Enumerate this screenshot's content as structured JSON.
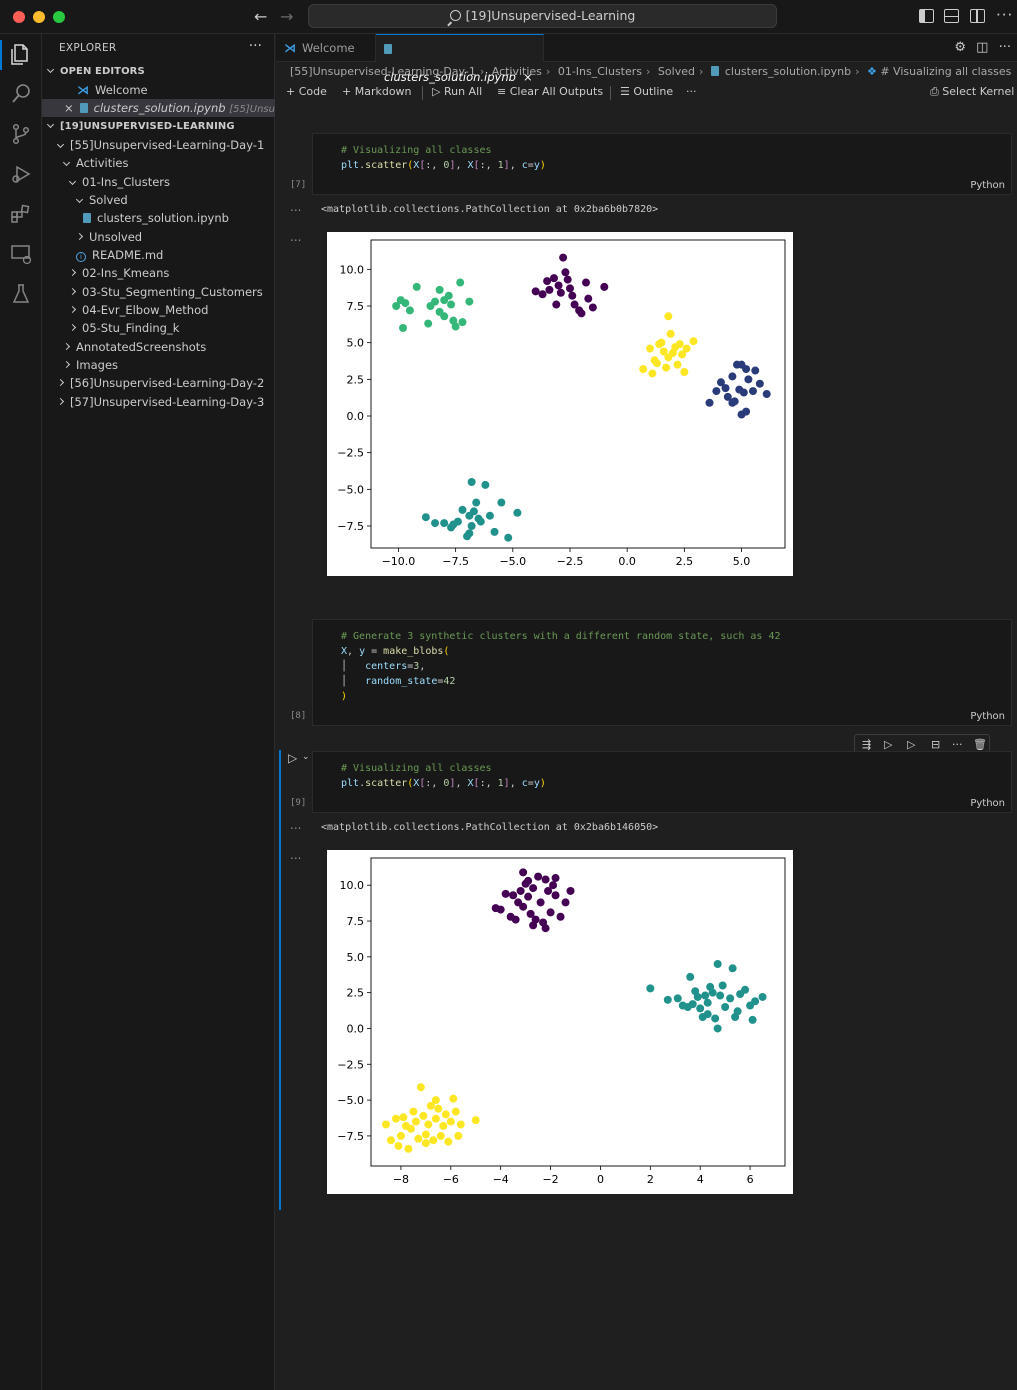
{
  "window": {
    "title": "[19]Unsupervised-Learning"
  },
  "sidebar": {
    "header": "EXPLORER",
    "open_editors_label": "OPEN EDITORS",
    "open_editors": [
      {
        "label": "Welcome"
      },
      {
        "label": "clusters_solution.ipynb",
        "detail": "[55]Unsup..."
      }
    ],
    "workspace_label": "[19]UNSUPERVISED-LEARNING",
    "tree": [
      "[55]Unsupervised-Learning-Day-1",
      "Activities",
      "01-Ins_Clusters",
      "Solved",
      "clusters_solution.ipynb",
      "Unsolved",
      "README.md",
      "02-Ins_Kmeans",
      "03-Stu_Segmenting_Customers",
      "04-Evr_Elbow_Method",
      "05-Stu_Finding_k",
      "AnnotatedScreenshots",
      "Images",
      "[56]Unsupervised-Learning-Day-2",
      "[57]Unsupervised-Learning-Day-3"
    ]
  },
  "tabs": [
    {
      "label": "Welcome"
    },
    {
      "label": "clusters_solution.ipynb"
    }
  ],
  "breadcrumb": [
    "[55]Unsupervised-Learning-Day-1",
    "Activities",
    "01-Ins_Clusters",
    "Solved",
    "clusters_solution.ipynb",
    "# Visualizing all classes"
  ],
  "toolbar": {
    "code": "Code",
    "markdown": "Markdown",
    "run_all": "Run All",
    "clear_outputs": "Clear All Outputs",
    "outline": "Outline",
    "kernel": "Select Kernel"
  },
  "cells": {
    "c7": {
      "exec": "[7]",
      "comment": "# Visualizing all classes",
      "lang": "Python",
      "output": "<matplotlib.collections.PathCollection at 0x2ba6b0b7820>"
    },
    "c8": {
      "exec": "[8]",
      "comment": "# Generate 3 synthetic clusters with a different random state, such as 42",
      "lang": "Python"
    },
    "c9": {
      "exec": "[9]",
      "comment": "# Visualizing all classes",
      "lang": "Python",
      "output": "<matplotlib.collections.PathCollection at 0x2ba6b146050>"
    },
    "output_dots": "..."
  },
  "colors": {
    "accent": "#0078d4",
    "viridis_purple": "#440154",
    "viridis_blue": "#31688e",
    "viridis_navy": "#2a3b7a",
    "viridis_teal": "#21918c",
    "viridis_green": "#35b779",
    "viridis_yellow": "#fde725"
  },
  "chart_data": [
    {
      "type": "scatter",
      "title": "",
      "xlabel": "",
      "ylabel": "",
      "xlim": [
        -11.2,
        6.9
      ],
      "ylim": [
        -9.0,
        12.0
      ],
      "xticks": [
        "−10.0",
        "−7.5",
        "−5.0",
        "−2.5",
        "0.0",
        "2.5",
        "5.0"
      ],
      "xtick_values": [
        -10,
        -7.5,
        -5,
        -2.5,
        0,
        2.5,
        5
      ],
      "yticks": [
        "10.0",
        "7.5",
        "5.0",
        "2.5",
        "0.0",
        "−2.5",
        "−5.0",
        "−7.5"
      ],
      "ytick_values": [
        10,
        7.5,
        5,
        2.5,
        0,
        -2.5,
        -5,
        -7.5
      ],
      "series": [
        {
          "color": "#35b779",
          "points": [
            [
              -10.1,
              7.5
            ],
            [
              -9.9,
              7.9
            ],
            [
              -9.7,
              7.7
            ],
            [
              -9.5,
              7.2
            ],
            [
              -9.2,
              8.8
            ],
            [
              -9.8,
              6.0
            ],
            [
              -8.7,
              6.3
            ],
            [
              -8.4,
              7.8
            ],
            [
              -8.2,
              8.6
            ],
            [
              -8.0,
              7.9
            ],
            [
              -7.8,
              8.2
            ],
            [
              -7.7,
              7.6
            ],
            [
              -8.0,
              6.8
            ],
            [
              -7.6,
              6.5
            ],
            [
              -7.5,
              6.1
            ],
            [
              -7.2,
              6.4
            ],
            [
              -6.9,
              7.8
            ],
            [
              -7.3,
              9.1
            ],
            [
              -8.2,
              7.1
            ],
            [
              -8.6,
              7.5
            ]
          ]
        },
        {
          "color": "#440154",
          "points": [
            [
              -4.0,
              8.5
            ],
            [
              -3.7,
              8.3
            ],
            [
              -3.5,
              9.2
            ],
            [
              -3.2,
              9.4
            ],
            [
              -3.0,
              8.9
            ],
            [
              -2.8,
              10.8
            ],
            [
              -2.6,
              9.3
            ],
            [
              -2.4,
              8.2
            ],
            [
              -2.3,
              7.6
            ],
            [
              -2.1,
              7.2
            ],
            [
              -2.0,
              7.0
            ],
            [
              -2.9,
              8.4
            ],
            [
              -3.1,
              7.6
            ],
            [
              -2.7,
              9.8
            ],
            [
              -1.7,
              8.0
            ],
            [
              -1.8,
              9.1
            ],
            [
              -1.0,
              8.8
            ],
            [
              -1.5,
              7.4
            ],
            [
              -2.5,
              8.7
            ],
            [
              -3.4,
              8.6
            ]
          ]
        },
        {
          "color": "#fde725",
          "points": [
            [
              0.7,
              3.2
            ],
            [
              1.0,
              4.6
            ],
            [
              1.1,
              2.9
            ],
            [
              1.3,
              3.6
            ],
            [
              1.5,
              5.0
            ],
            [
              1.6,
              4.4
            ],
            [
              1.7,
              3.3
            ],
            [
              1.8,
              4.0
            ],
            [
              1.9,
              5.6
            ],
            [
              2.0,
              4.3
            ],
            [
              2.1,
              4.7
            ],
            [
              2.2,
              3.5
            ],
            [
              2.3,
              4.9
            ],
            [
              2.4,
              4.2
            ],
            [
              2.6,
              4.6
            ],
            [
              2.9,
              5.1
            ],
            [
              1.8,
              6.8
            ],
            [
              1.2,
              3.8
            ],
            [
              2.5,
              3.0
            ],
            [
              1.4,
              4.9
            ]
          ]
        },
        {
          "color": "#2a3b7a",
          "points": [
            [
              3.6,
              0.9
            ],
            [
              3.9,
              1.7
            ],
            [
              4.1,
              2.3
            ],
            [
              4.3,
              1.9
            ],
            [
              4.4,
              1.3
            ],
            [
              4.6,
              2.7
            ],
            [
              4.7,
              1.0
            ],
            [
              4.8,
              3.5
            ],
            [
              4.9,
              1.8
            ],
            [
              5.0,
              0.1
            ],
            [
              5.1,
              1.6
            ],
            [
              5.2,
              3.2
            ],
            [
              5.3,
              2.5
            ],
            [
              5.5,
              1.7
            ],
            [
              5.6,
              3.1
            ],
            [
              5.8,
              2.2
            ],
            [
              6.1,
              1.5
            ],
            [
              5.2,
              0.3
            ],
            [
              4.6,
              0.9
            ],
            [
              5.0,
              3.5
            ]
          ]
        },
        {
          "color": "#21918c",
          "points": [
            [
              -8.8,
              -6.9
            ],
            [
              -8.4,
              -7.3
            ],
            [
              -8.0,
              -7.3
            ],
            [
              -7.7,
              -7.6
            ],
            [
              -7.4,
              -7.2
            ],
            [
              -7.2,
              -6.4
            ],
            [
              -7.0,
              -8.2
            ],
            [
              -6.9,
              -6.8
            ],
            [
              -6.8,
              -7.5
            ],
            [
              -6.7,
              -6.5
            ],
            [
              -6.6,
              -5.9
            ],
            [
              -6.4,
              -7.2
            ],
            [
              -6.2,
              -4.7
            ],
            [
              -6.0,
              -6.8
            ],
            [
              -5.8,
              -7.9
            ],
            [
              -5.5,
              -5.9
            ],
            [
              -5.2,
              -8.3
            ],
            [
              -4.8,
              -6.6
            ],
            [
              -6.8,
              -4.5
            ],
            [
              -7.6,
              -7.4
            ],
            [
              -6.9,
              -8.0
            ],
            [
              -6.5,
              -7.0
            ]
          ]
        }
      ]
    },
    {
      "type": "scatter",
      "title": "",
      "xlabel": "",
      "ylabel": "",
      "xlim": [
        -9.2,
        7.4
      ],
      "ylim": [
        -9.6,
        11.9
      ],
      "xticks": [
        "−8",
        "−6",
        "−4",
        "−2",
        "0",
        "2",
        "4",
        "6"
      ],
      "xtick_values": [
        -8,
        -6,
        -4,
        -2,
        0,
        2,
        4,
        6
      ],
      "yticks": [
        "10.0",
        "7.5",
        "5.0",
        "2.5",
        "0.0",
        "−2.5",
        "−5.0",
        "−7.5"
      ],
      "ytick_values": [
        10,
        7.5,
        5,
        2.5,
        0,
        -2.5,
        -5,
        -7.5
      ],
      "series": [
        {
          "color": "#440154",
          "points": [
            [
              -4.2,
              8.4
            ],
            [
              -4.0,
              8.3
            ],
            [
              -3.8,
              9.4
            ],
            [
              -3.6,
              7.8
            ],
            [
              -3.5,
              9.3
            ],
            [
              -3.4,
              7.6
            ],
            [
              -3.3,
              8.8
            ],
            [
              -3.2,
              9.6
            ],
            [
              -3.1,
              8.5
            ],
            [
              -3.0,
              10.1
            ],
            [
              -2.9,
              9.2
            ],
            [
              -2.8,
              8.0
            ],
            [
              -2.7,
              9.8
            ],
            [
              -2.6,
              7.6
            ],
            [
              -2.5,
              10.6
            ],
            [
              -2.4,
              8.8
            ],
            [
              -2.3,
              7.4
            ],
            [
              -2.2,
              7.0
            ],
            [
              -2.1,
              9.6
            ],
            [
              -2.0,
              8.1
            ],
            [
              -1.9,
              10.0
            ],
            [
              -1.8,
              9.3
            ],
            [
              -1.6,
              7.8
            ],
            [
              -1.4,
              8.8
            ],
            [
              -1.2,
              9.6
            ],
            [
              -3.1,
              10.9
            ],
            [
              -2.9,
              10.3
            ],
            [
              -2.2,
              10.4
            ],
            [
              -1.8,
              10.5
            ],
            [
              -2.7,
              7.2
            ]
          ]
        },
        {
          "color": "#21918c",
          "points": [
            [
              2.0,
              2.8
            ],
            [
              2.7,
              2.0
            ],
            [
              3.1,
              2.1
            ],
            [
              3.3,
              1.6
            ],
            [
              3.5,
              1.5
            ],
            [
              3.6,
              3.6
            ],
            [
              3.7,
              1.7
            ],
            [
              3.8,
              2.6
            ],
            [
              3.9,
              2.2
            ],
            [
              4.0,
              1.4
            ],
            [
              4.1,
              0.8
            ],
            [
              4.2,
              2.3
            ],
            [
              4.3,
              1.8
            ],
            [
              4.4,
              2.9
            ],
            [
              4.5,
              2.5
            ],
            [
              4.6,
              0.7
            ],
            [
              4.7,
              4.5
            ],
            [
              4.8,
              2.3
            ],
            [
              4.9,
              3.0
            ],
            [
              5.0,
              1.5
            ],
            [
              5.2,
              2.1
            ],
            [
              5.3,
              4.2
            ],
            [
              5.4,
              0.8
            ],
            [
              5.5,
              1.2
            ],
            [
              5.6,
              2.4
            ],
            [
              5.8,
              2.7
            ],
            [
              6.0,
              1.6
            ],
            [
              6.1,
              0.6
            ],
            [
              6.2,
              1.9
            ],
            [
              6.5,
              2.2
            ],
            [
              4.7,
              0.0
            ],
            [
              4.3,
              1.0
            ]
          ]
        },
        {
          "color": "#fde725",
          "points": [
            [
              -8.6,
              -6.7
            ],
            [
              -8.4,
              -7.8
            ],
            [
              -8.2,
              -6.3
            ],
            [
              -8.1,
              -8.2
            ],
            [
              -8.0,
              -7.5
            ],
            [
              -7.9,
              -6.2
            ],
            [
              -7.8,
              -6.8
            ],
            [
              -7.7,
              -8.4
            ],
            [
              -7.6,
              -7.0
            ],
            [
              -7.5,
              -5.8
            ],
            [
              -7.4,
              -6.5
            ],
            [
              -7.3,
              -7.7
            ],
            [
              -7.2,
              -4.1
            ],
            [
              -7.1,
              -6.1
            ],
            [
              -7.0,
              -7.4
            ],
            [
              -6.9,
              -6.7
            ],
            [
              -6.8,
              -5.4
            ],
            [
              -6.7,
              -7.8
            ],
            [
              -6.6,
              -6.3
            ],
            [
              -6.5,
              -5.6
            ],
            [
              -6.4,
              -7.5
            ],
            [
              -6.3,
              -6.8
            ],
            [
              -6.2,
              -6.0
            ],
            [
              -6.1,
              -7.9
            ],
            [
              -6.0,
              -6.5
            ],
            [
              -5.9,
              -4.9
            ],
            [
              -5.8,
              -5.8
            ],
            [
              -5.7,
              -7.5
            ],
            [
              -5.6,
              -6.7
            ],
            [
              -5.0,
              -6.4
            ],
            [
              -6.6,
              -5.0
            ],
            [
              -7.0,
              -8.0
            ]
          ]
        }
      ]
    }
  ]
}
